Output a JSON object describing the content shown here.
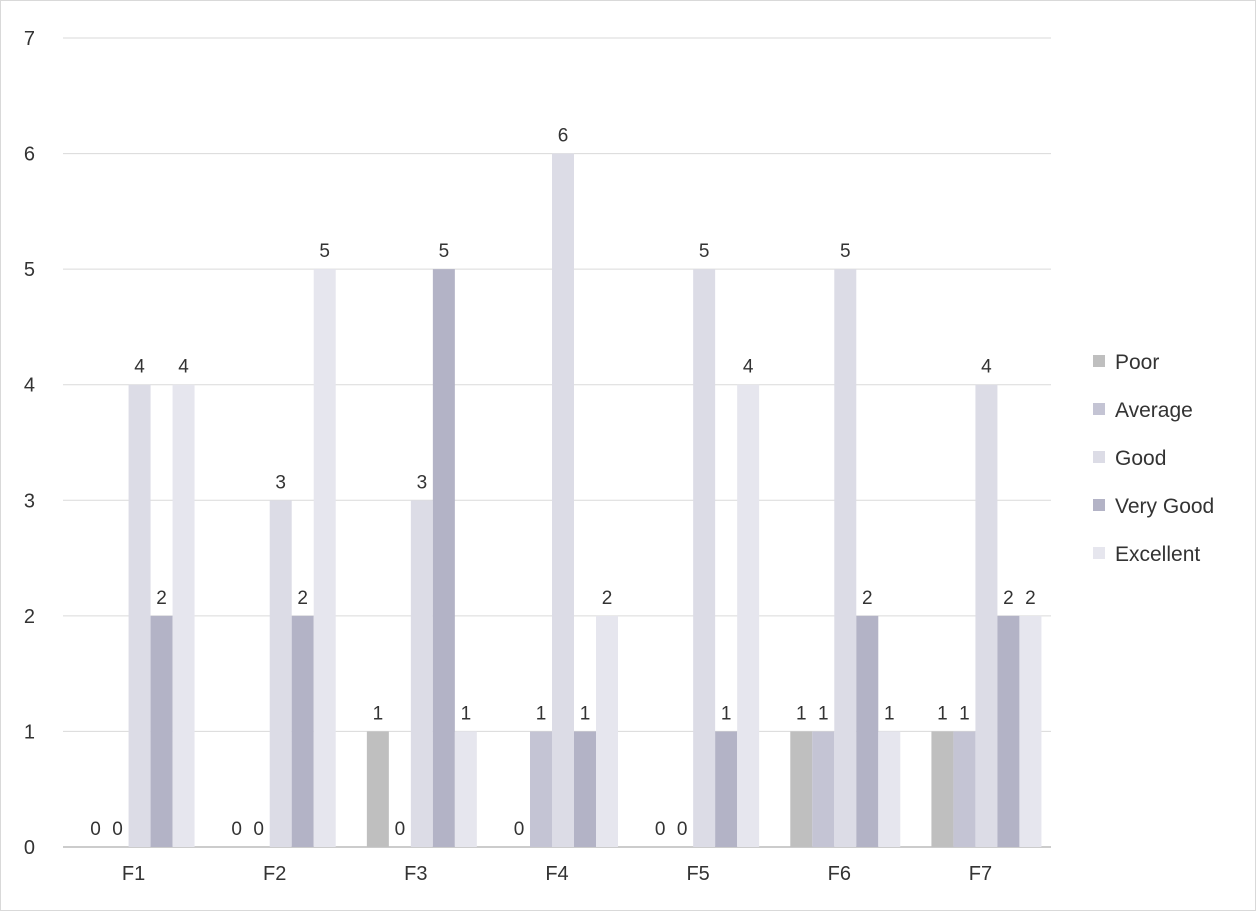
{
  "chart_data": {
    "type": "bar",
    "title": "",
    "xlabel": "",
    "ylabel": "",
    "categories": [
      "F1",
      "F2",
      "F3",
      "F4",
      "F5",
      "F6",
      "F7"
    ],
    "ylim": [
      0,
      7
    ],
    "yticks": [
      0,
      1,
      2,
      3,
      4,
      5,
      6,
      7
    ],
    "grid": true,
    "legend_position": "right",
    "series": [
      {
        "name": "Poor",
        "color": "#bfbfbf",
        "values": [
          0,
          0,
          1,
          0,
          0,
          1,
          1
        ]
      },
      {
        "name": "Average",
        "color": "#c4c4d4",
        "values": [
          0,
          0,
          0,
          1,
          0,
          1,
          1
        ]
      },
      {
        "name": "Good",
        "color": "#dcdce6",
        "values": [
          4,
          3,
          3,
          6,
          5,
          5,
          4
        ]
      },
      {
        "name": "Very Good",
        "color": "#b3b3c6",
        "values": [
          2,
          2,
          5,
          1,
          1,
          2,
          2
        ]
      },
      {
        "name": "Excellent",
        "color": "#e6e6ee",
        "values": [
          4,
          5,
          1,
          2,
          4,
          1,
          2
        ]
      }
    ]
  }
}
